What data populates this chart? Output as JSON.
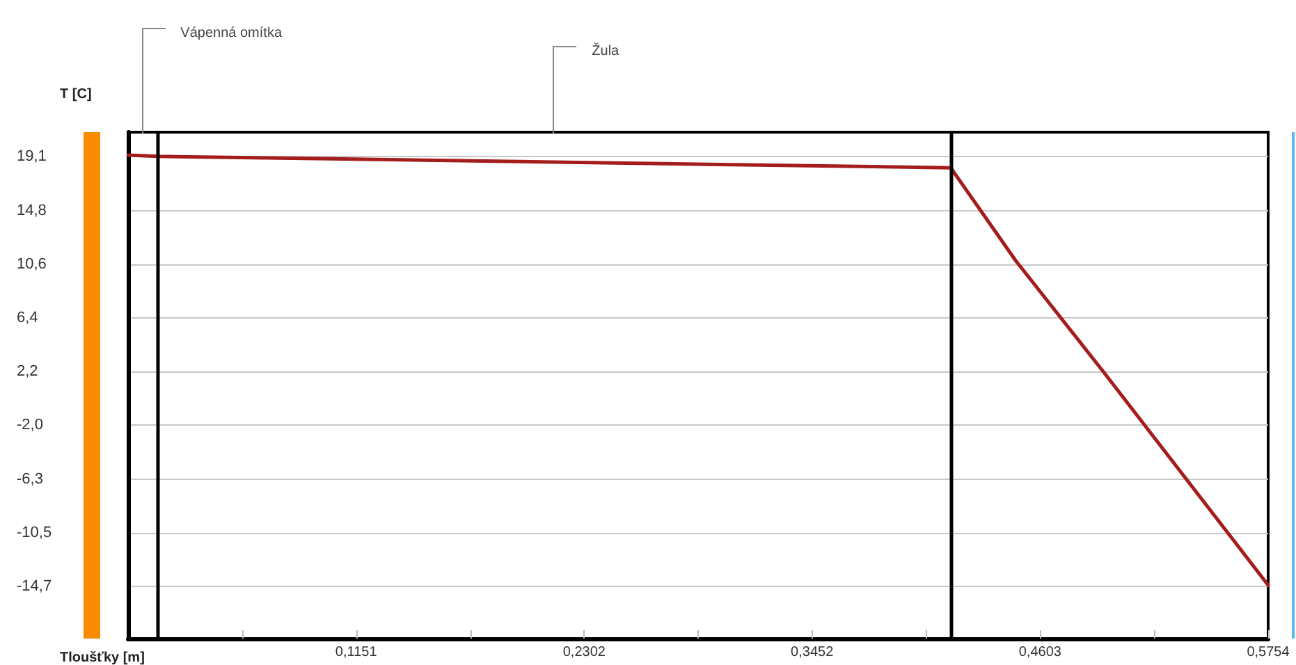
{
  "chart_data": {
    "type": "line",
    "xlabel": "Tloušťky [m]",
    "ylabel": "T [C]",
    "x": [
      0,
      0.015,
      0.4152,
      0.448,
      0.4926,
      0.5754
    ],
    "series": [
      {
        "color": "#a51c1c",
        "values": [
          19.2,
          19.1,
          18.2,
          10.9,
          2.1,
          -14.6
        ]
      }
    ],
    "xlim": [
      0,
      0.5754
    ],
    "xticks": [
      {
        "value": 0.0576,
        "label": null
      },
      {
        "value": 0.1151,
        "label": "0,1151"
      },
      {
        "value": 0.1727,
        "label": null
      },
      {
        "value": 0.2302,
        "label": "0,2302"
      },
      {
        "value": 0.2877,
        "label": null
      },
      {
        "value": 0.3452,
        "label": "0,3452"
      },
      {
        "value": 0.4028,
        "label": null
      },
      {
        "value": 0.4603,
        "label": "0,4603"
      },
      {
        "value": 0.5179,
        "label": null
      },
      {
        "value": 0.5754,
        "label": "0,5754"
      }
    ],
    "ylim": [
      -18.8,
      21
    ],
    "yticks": [
      {
        "value": -14.7,
        "label": "-14,7"
      },
      {
        "value": -10.5,
        "label": "-10,5"
      },
      {
        "value": -6.3,
        "label": "-6,3"
      },
      {
        "value": -2.0,
        "label": "-2,0"
      },
      {
        "value": 2.2,
        "label": "2,2"
      },
      {
        "value": 6.4,
        "label": "6,4"
      },
      {
        "value": 10.6,
        "label": "10,6"
      },
      {
        "value": 14.8,
        "label": "14,8"
      },
      {
        "value": 19.1,
        "label": "19,1"
      }
    ],
    "grid": "y",
    "marker": "none",
    "line_style": "solid",
    "ref_lines": [
      {
        "axis": "x",
        "value": 0.015,
        "color": "#000000"
      },
      {
        "axis": "x",
        "value": 0.4152,
        "color": "#000000"
      }
    ],
    "annotations": [
      "Vápenná omítka",
      "Žula"
    ]
  }
}
